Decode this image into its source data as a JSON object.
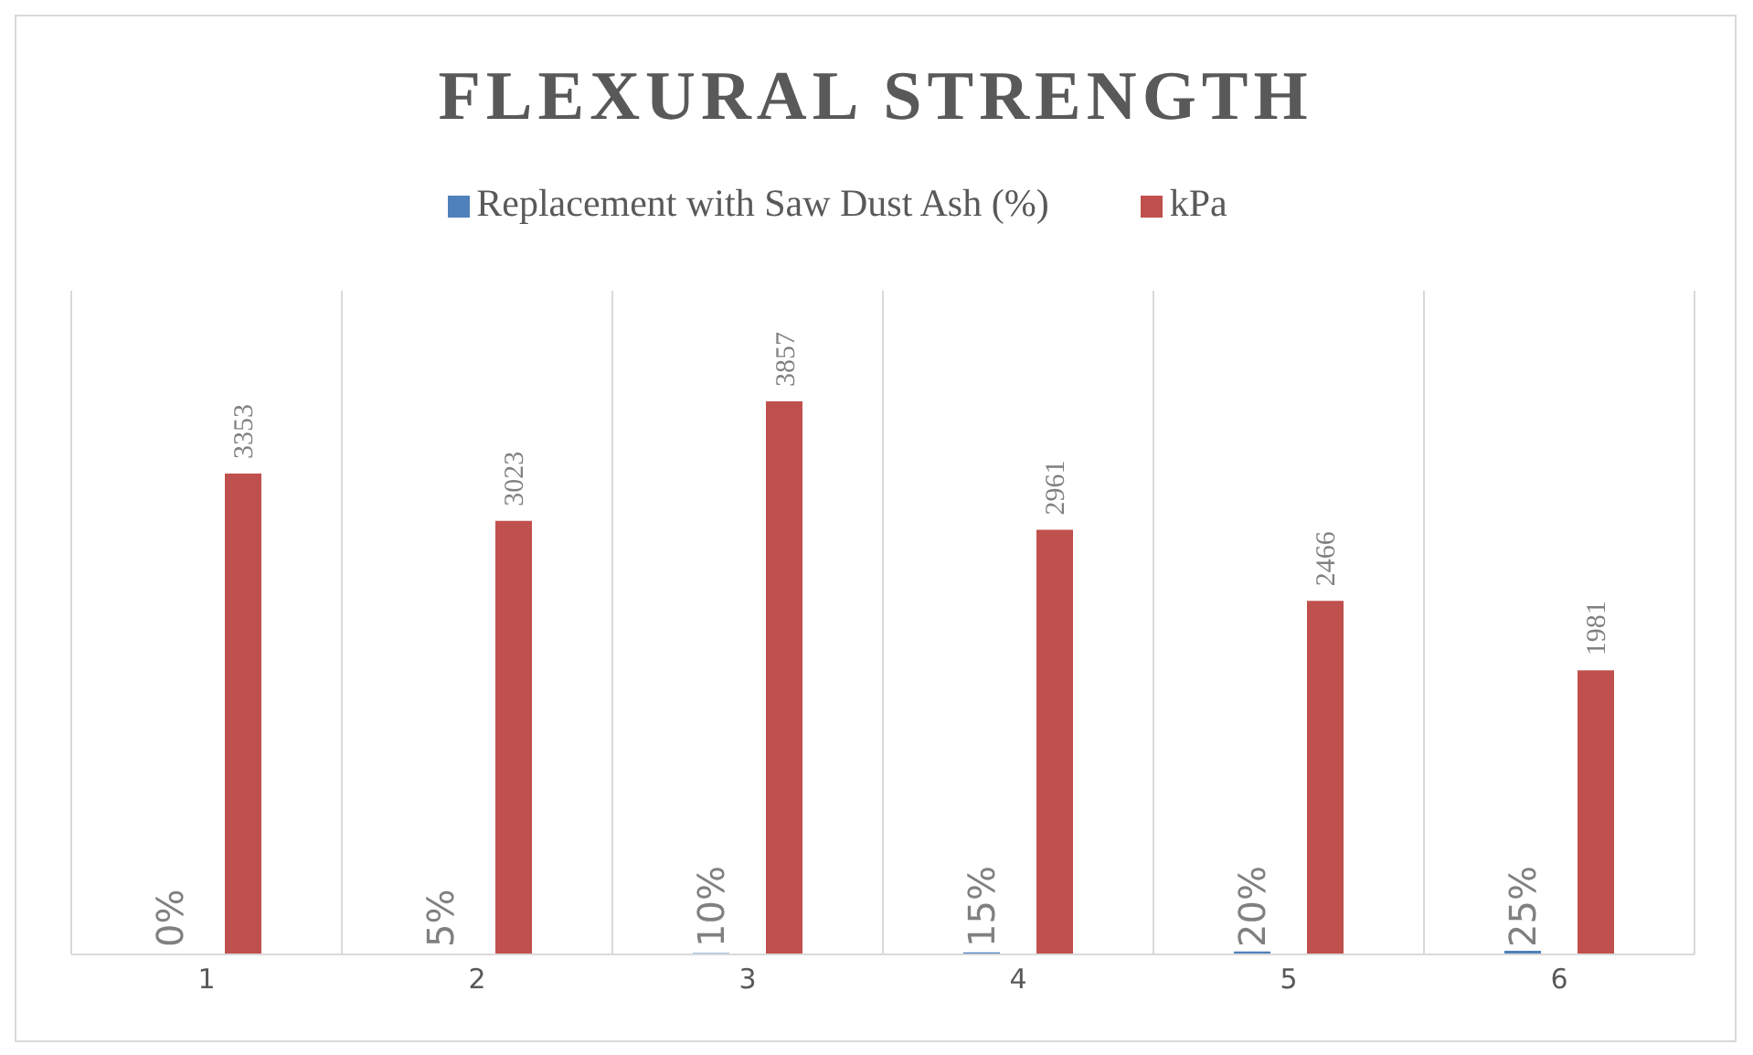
{
  "chart_data": {
    "type": "bar",
    "title": "FLEXURAL STRENGTH",
    "categories": [
      "1",
      "2",
      "3",
      "4",
      "5",
      "6"
    ],
    "series": [
      {
        "name": "Replacement with Saw Dust Ash (%)",
        "color": "#4f81bd",
        "values": [
          0,
          5,
          10,
          15,
          20,
          25
        ],
        "value_labels": [
          "0%",
          "5%",
          "10%",
          "15%",
          "20%",
          "25%"
        ]
      },
      {
        "name": "kPa",
        "color": "#c0504d",
        "values": [
          3353,
          3023,
          3857,
          2961,
          2466,
          1981
        ],
        "value_labels": [
          "3353",
          "3023",
          "3857",
          "2961",
          "2466",
          "1981"
        ]
      }
    ],
    "grid": "x",
    "legend": "top"
  }
}
